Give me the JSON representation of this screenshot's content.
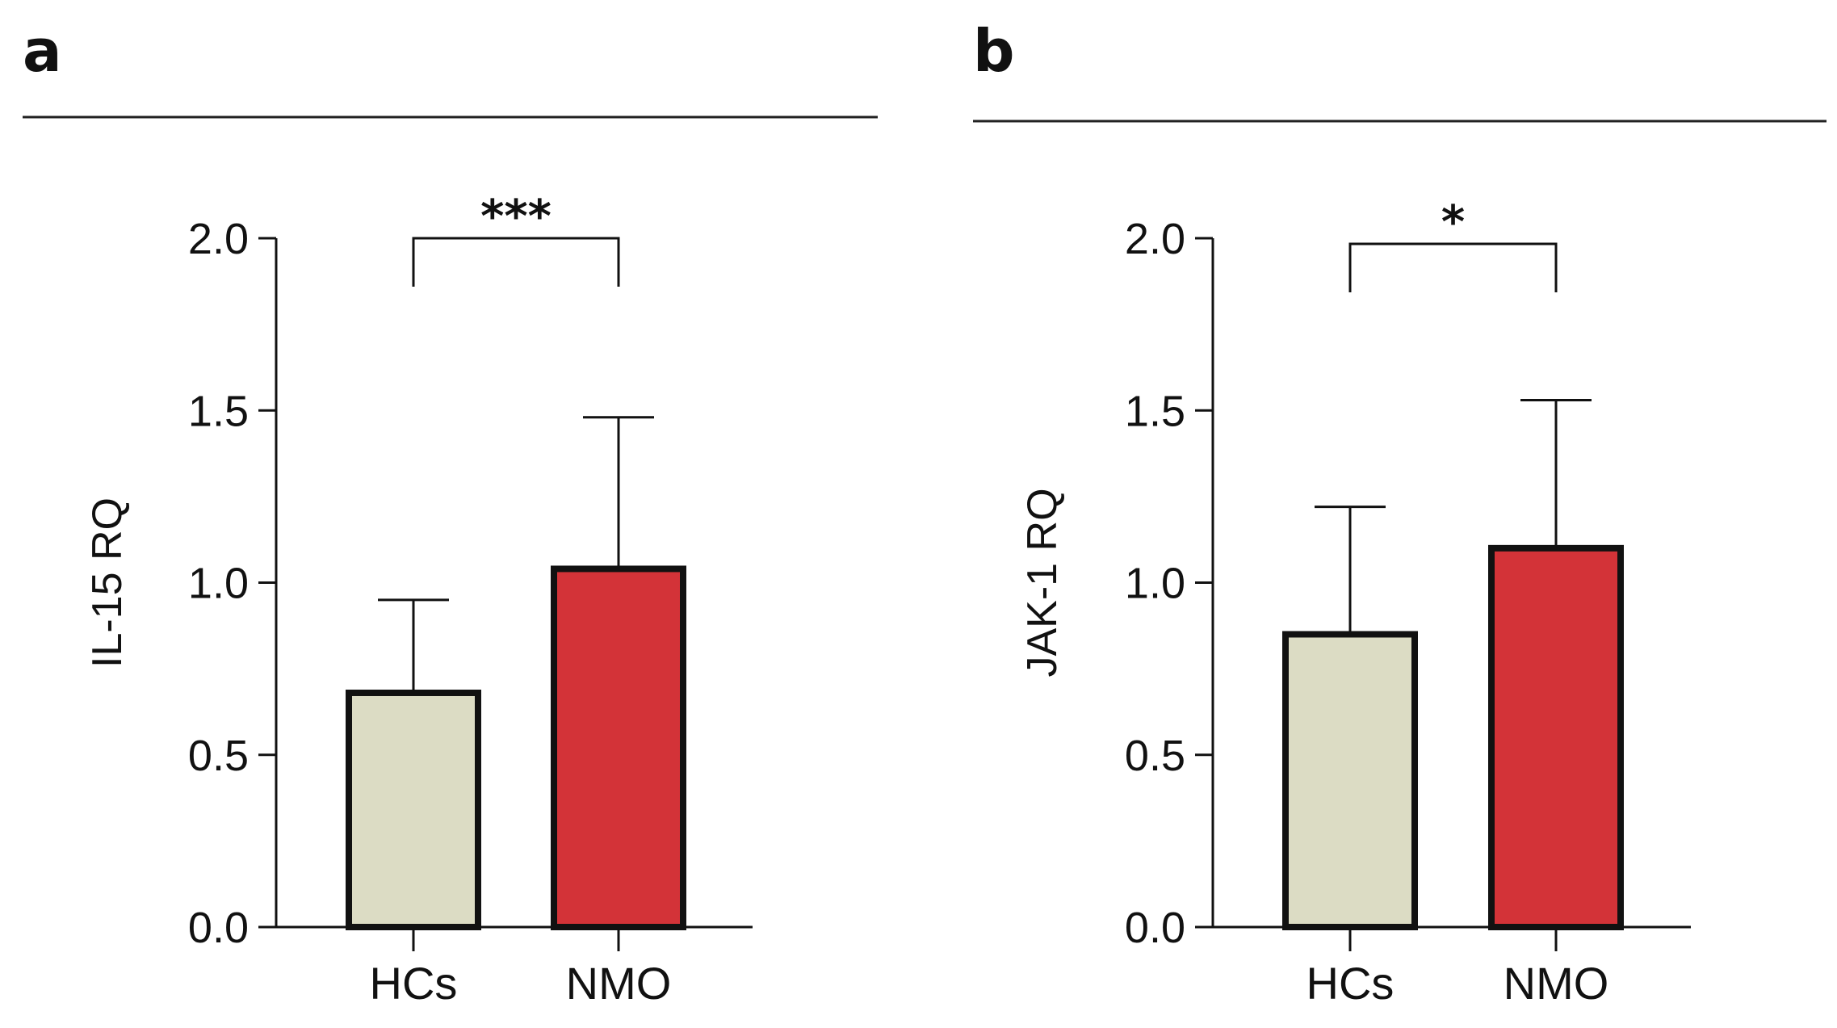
{
  "chart_data": [
    {
      "type": "bar",
      "panel_label": "a",
      "categories": [
        "HCs",
        "NMO"
      ],
      "values": [
        0.68,
        1.04
      ],
      "error_upper": [
        0.95,
        1.48
      ],
      "ylabel": "IL-15 RQ",
      "ylim": [
        0,
        2.0
      ],
      "yticks": [
        "0.0",
        "0.5",
        "1.0",
        "1.5",
        "2.0"
      ],
      "significance": "***",
      "colors": [
        "#dcdcc4",
        "#d33338"
      ],
      "grid": false,
      "legend": "none"
    },
    {
      "type": "bar",
      "panel_label": "b",
      "categories": [
        "HCs",
        "NMO"
      ],
      "values": [
        0.85,
        1.1
      ],
      "error_upper": [
        1.22,
        1.53
      ],
      "ylabel": "JAK-1 RQ",
      "ylim": [
        0,
        2.0
      ],
      "yticks": [
        "0.0",
        "0.5",
        "1.0",
        "1.5",
        "2.0"
      ],
      "significance": "*",
      "colors": [
        "#dcdcc4",
        "#d33338"
      ],
      "grid": false,
      "legend": "none"
    }
  ]
}
